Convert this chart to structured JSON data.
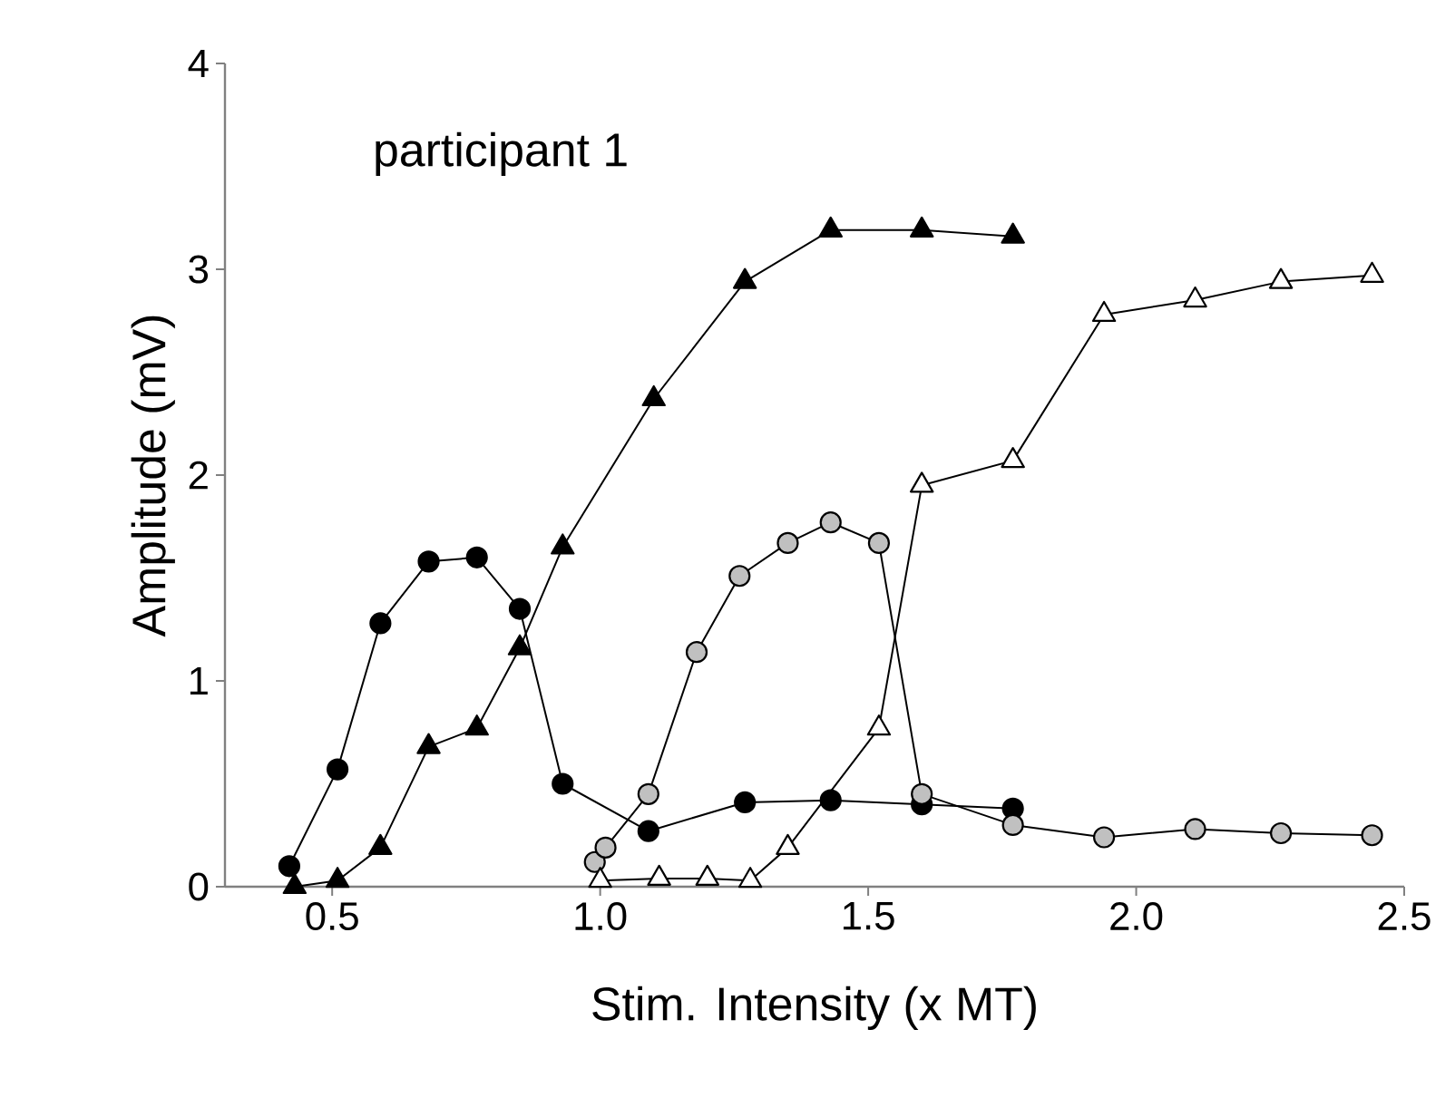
{
  "chart_data": {
    "type": "line",
    "xlabel": "Stim. Intensity (x MT)",
    "ylabel": "Amplitude (mV)",
    "annotations": [
      "participant 1"
    ],
    "xlim": [
      0.3,
      2.5
    ],
    "xticks": [
      {
        "value": 0.5,
        "label": "0.5"
      },
      {
        "value": 1.0,
        "label": "1.0"
      },
      {
        "value": 1.5,
        "label": "1.5"
      },
      {
        "value": 2.0,
        "label": "2.0"
      },
      {
        "value": 2.5,
        "label": "2.5"
      }
    ],
    "ylim": [
      0,
      4
    ],
    "yticks": [
      0,
      1,
      2,
      3,
      4
    ],
    "grid": false,
    "line_style": "solid",
    "series": [
      {
        "color": "#000000",
        "marker": "circle",
        "x": [
          0.42,
          0.51,
          0.59,
          0.68,
          0.77,
          0.85,
          0.93,
          1.09,
          1.27,
          1.43,
          1.6,
          1.77
        ],
        "values": [
          0.1,
          0.57,
          1.28,
          1.58,
          1.6,
          1.35,
          0.5,
          0.27,
          0.41,
          0.42,
          0.4,
          0.38
        ]
      },
      {
        "color": "#000000",
        "marker": "triangle",
        "x": [
          0.43,
          0.51,
          0.59,
          0.68,
          0.77,
          0.85,
          0.93,
          1.1,
          1.27,
          1.43,
          1.6,
          1.77
        ],
        "values": [
          0.0,
          0.03,
          0.19,
          0.68,
          0.77,
          1.16,
          1.65,
          2.37,
          2.94,
          3.19,
          3.19,
          3.16
        ]
      },
      {
        "color": "#c0c0c0",
        "marker": "circle",
        "x": [
          0.99,
          1.01,
          1.09,
          1.18,
          1.26,
          1.35,
          1.43,
          1.52,
          1.6,
          1.77,
          1.94,
          2.11,
          2.27,
          2.44
        ],
        "values": [
          0.12,
          0.19,
          0.45,
          1.14,
          1.51,
          1.67,
          1.77,
          1.67,
          0.45,
          0.3,
          0.24,
          0.28,
          0.26,
          0.25
        ]
      },
      {
        "color": "#ffffff",
        "marker": "triangle",
        "x": [
          1.0,
          1.11,
          1.2,
          1.28,
          1.35,
          1.52,
          1.6,
          1.77,
          1.94,
          2.11,
          2.27,
          2.44
        ],
        "values": [
          0.03,
          0.04,
          0.04,
          0.03,
          0.19,
          0.77,
          1.95,
          2.07,
          2.78,
          2.85,
          2.94,
          2.97
        ]
      }
    ]
  }
}
